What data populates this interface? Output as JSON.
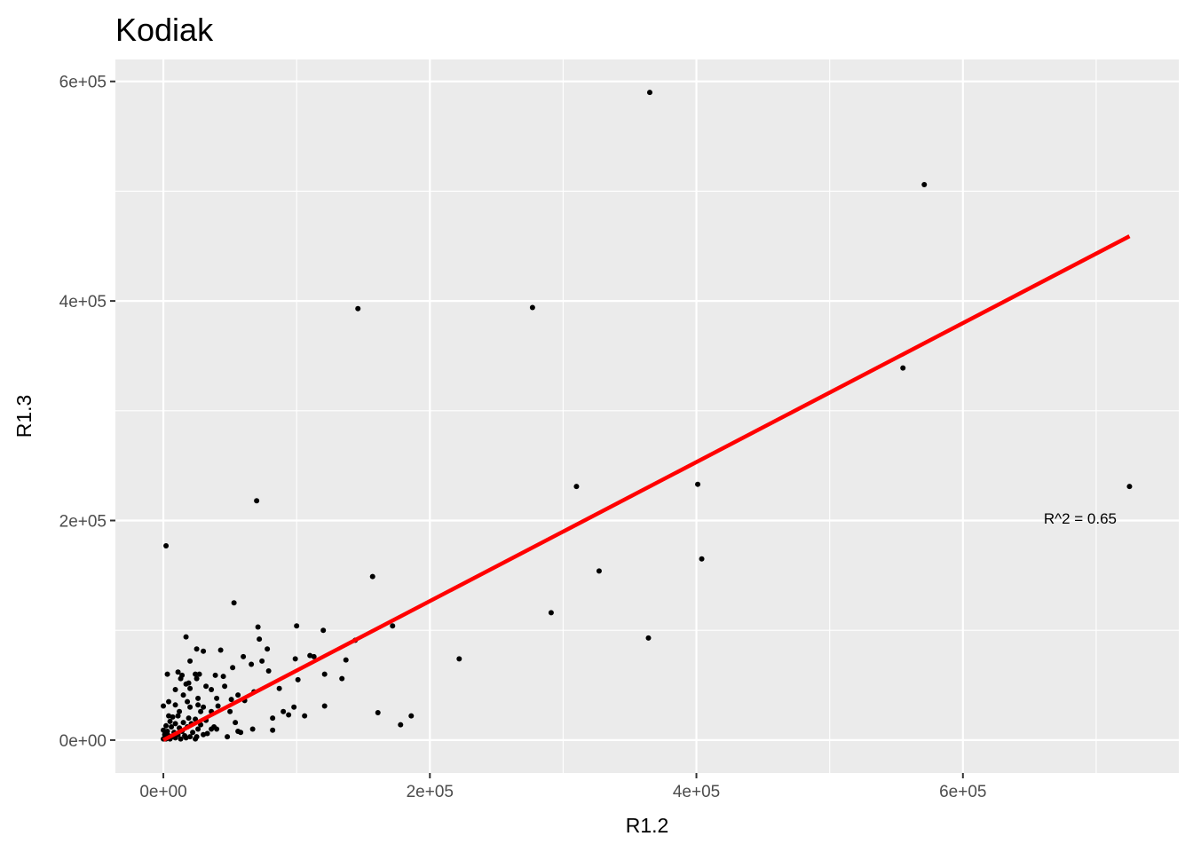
{
  "chart_data": {
    "type": "scatter",
    "title": "Kodiak",
    "xlabel": "R1.2",
    "ylabel": "R1.3",
    "xlim": [
      -36000,
      762000
    ],
    "ylim": [
      -30000,
      620000
    ],
    "x_ticks": [
      0,
      200000,
      400000,
      600000
    ],
    "x_tick_labels": [
      "0e+00",
      "2e+05",
      "4e+05",
      "6e+05"
    ],
    "x_minor_ticks": [
      100000,
      300000,
      500000,
      700000
    ],
    "y_ticks": [
      0,
      200000,
      400000,
      600000
    ],
    "y_tick_labels": [
      "0e+00",
      "2e+05",
      "4e+05",
      "6e+05"
    ],
    "y_minor_ticks": [
      100000,
      300000,
      500000
    ],
    "grid": true,
    "background": "#ebebeb",
    "point_color": "#000000",
    "fit_line": {
      "color": "#ff0000",
      "x": [
        0,
        725000
      ],
      "y": [
        0,
        459000
      ]
    },
    "annotation": {
      "text": "R^2 = 0.65",
      "x": 688000,
      "y": 202000
    },
    "points": [
      [
        365000,
        590000
      ],
      [
        571000,
        506000
      ],
      [
        146000,
        393000
      ],
      [
        277000,
        394000
      ],
      [
        555000,
        339000
      ],
      [
        310000,
        231000
      ],
      [
        401000,
        233000
      ],
      [
        725000,
        231000
      ],
      [
        70000,
        218000
      ],
      [
        2000,
        177000
      ],
      [
        404000,
        165000
      ],
      [
        327000,
        154000
      ],
      [
        157000,
        149000
      ],
      [
        53000,
        125000
      ],
      [
        291000,
        116000
      ],
      [
        364000,
        93000
      ],
      [
        222000,
        74000
      ],
      [
        172000,
        104000
      ],
      [
        100000,
        104000
      ],
      [
        71000,
        103000
      ],
      [
        120000,
        100000
      ],
      [
        17000,
        94000
      ],
      [
        144000,
        91000
      ],
      [
        72000,
        92000
      ],
      [
        161000,
        25000
      ],
      [
        186000,
        22000
      ],
      [
        178000,
        14000
      ],
      [
        25000,
        83000
      ],
      [
        30000,
        81000
      ],
      [
        78000,
        83000
      ],
      [
        43000,
        82000
      ],
      [
        110000,
        77000
      ],
      [
        113000,
        76000
      ],
      [
        60000,
        76000
      ],
      [
        137000,
        73000
      ],
      [
        20000,
        72000
      ],
      [
        74000,
        72000
      ],
      [
        99000,
        74000
      ],
      [
        66000,
        69000
      ],
      [
        52000,
        66000
      ],
      [
        11000,
        62000
      ],
      [
        3000,
        60000
      ],
      [
        14000,
        59000
      ],
      [
        24000,
        60000
      ],
      [
        27000,
        60000
      ],
      [
        39000,
        59000
      ],
      [
        45000,
        58000
      ],
      [
        121000,
        60000
      ],
      [
        134000,
        56000
      ],
      [
        79000,
        63000
      ],
      [
        13000,
        56000
      ],
      [
        25000,
        56000
      ],
      [
        101000,
        55000
      ],
      [
        17000,
        51000
      ],
      [
        19000,
        52000
      ],
      [
        32000,
        49000
      ],
      [
        46000,
        49000
      ],
      [
        87000,
        47000
      ],
      [
        20000,
        47000
      ],
      [
        9000,
        46000
      ],
      [
        36000,
        46000
      ],
      [
        68000,
        44000
      ],
      [
        56000,
        41000
      ],
      [
        15000,
        41000
      ],
      [
        26000,
        38000
      ],
      [
        40000,
        38000
      ],
      [
        51000,
        37000
      ],
      [
        4000,
        35000
      ],
      [
        18000,
        35000
      ],
      [
        9000,
        32000
      ],
      [
        26000,
        32000
      ],
      [
        61000,
        36000
      ],
      [
        0,
        31000
      ],
      [
        20000,
        30000
      ],
      [
        30000,
        30000
      ],
      [
        41000,
        31000
      ],
      [
        98000,
        30000
      ],
      [
        121000,
        31000
      ],
      [
        90000,
        26000
      ],
      [
        12000,
        26000
      ],
      [
        28000,
        26000
      ],
      [
        36000,
        26000
      ],
      [
        50000,
        26000
      ],
      [
        94000,
        23000
      ],
      [
        106000,
        22000
      ],
      [
        4000,
        22000
      ],
      [
        7000,
        21000
      ],
      [
        11000,
        22000
      ],
      [
        19000,
        20000
      ],
      [
        24000,
        19000
      ],
      [
        32000,
        18000
      ],
      [
        82000,
        20000
      ],
      [
        5000,
        17000
      ],
      [
        9000,
        15000
      ],
      [
        15000,
        16000
      ],
      [
        21000,
        15000
      ],
      [
        28000,
        14000
      ],
      [
        54000,
        16000
      ],
      [
        2000,
        13000
      ],
      [
        6000,
        12000
      ],
      [
        12000,
        11000
      ],
      [
        18000,
        12000
      ],
      [
        26000,
        10000
      ],
      [
        36000,
        10000
      ],
      [
        0,
        9000
      ],
      [
        3000,
        8000
      ],
      [
        8000,
        7000
      ],
      [
        14000,
        8000
      ],
      [
        22000,
        7000
      ],
      [
        38000,
        12000
      ],
      [
        67000,
        10000
      ],
      [
        82000,
        9000
      ],
      [
        1000,
        5000
      ],
      [
        4000,
        4000
      ],
      [
        7000,
        3000
      ],
      [
        11000,
        5000
      ],
      [
        16000,
        4000
      ],
      [
        20000,
        3000
      ],
      [
        25000,
        3000
      ],
      [
        30000,
        5000
      ],
      [
        48000,
        3000
      ],
      [
        56000,
        8000
      ],
      [
        58000,
        7000
      ],
      [
        0,
        1000
      ],
      [
        2000,
        1000
      ],
      [
        5000,
        1000
      ],
      [
        9000,
        2000
      ],
      [
        13000,
        1000
      ],
      [
        17000,
        2000
      ],
      [
        24000,
        1000
      ],
      [
        33000,
        6000
      ],
      [
        40000,
        10000
      ]
    ]
  }
}
